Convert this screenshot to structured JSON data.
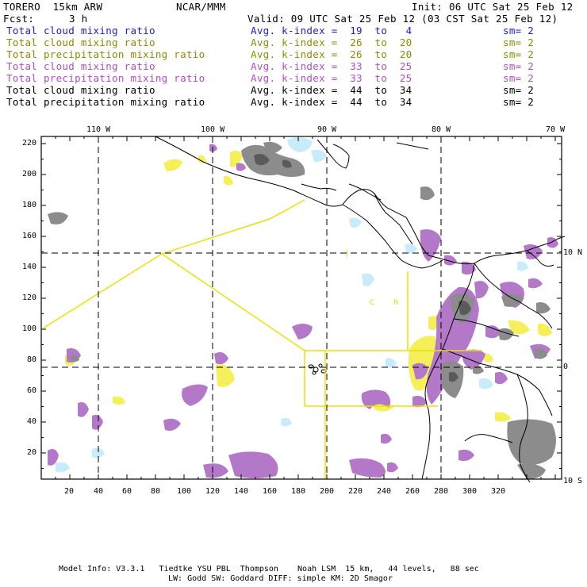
{
  "header": {
    "model": "TORERO  15km ARW",
    "org": "NCAR/MMM",
    "init": "Init: 06 UTC Sat 25 Feb 12",
    "fcst_label": "Fcst:",
    "fcst_value": "3 h",
    "valid": "Valid: 09 UTC Sat 25 Feb 12 (03 CST Sat 25 Feb 12)"
  },
  "legend": [
    {
      "field": "Total cloud mixing ratio",
      "index": "Avg. k-index =  19  to   4",
      "sm": "sm= 2",
      "color": "#1a1ae6"
    },
    {
      "field": "Total cloud mixing ratio",
      "index": "Avg. k-index =  26  to  20",
      "sm": "sm= 2",
      "color": "#8c8c00"
    },
    {
      "field": "Total precipitation mixing ratio",
      "index": "Avg. k-index =  26  to  20",
      "sm": "sm= 2",
      "color": "#8c8c00"
    },
    {
      "field": "Total cloud mixing ratio",
      "index": "Avg. k-index =  33  to  25",
      "sm": "sm= 2",
      "color": "#b44cc8"
    },
    {
      "field": "Total precipitation mixing ratio",
      "index": "Avg. k-index =  33  to  25",
      "sm": "sm= 2",
      "color": "#b44cc8"
    },
    {
      "field": "Total cloud mixing ratio",
      "index": "Avg. k-index =  44  to  34",
      "sm": "sm= 2",
      "color": "#000000"
    },
    {
      "field": "Total precipitation mixing ratio",
      "index": "Avg. k-index =  44  to  34",
      "sm": "sm= 2",
      "color": "#000000"
    }
  ],
  "axes": {
    "lon_labels": [
      "110 W",
      "100 W",
      "90 W",
      "80 W",
      "70 W"
    ],
    "lat_labels": [
      "10 N",
      "0",
      "10 S"
    ],
    "y_ticks": [
      "220",
      "200",
      "180",
      "160",
      "140",
      "120",
      "100",
      "80",
      "60",
      "40",
      "20"
    ],
    "x_ticks": [
      "20",
      "40",
      "60",
      "80",
      "100",
      "120",
      "140",
      "160",
      "180",
      "200",
      "220",
      "240",
      "260",
      "280",
      "300",
      "320"
    ]
  },
  "map_labels": {
    "country_c": "C",
    "country_r": "R"
  },
  "footer": {
    "line1": "Model Info: V3.3.1   Tiedtke YSU PBL  Thompson    Noah LSM  15 km,   44 levels,   88 sec",
    "line2": "LW: Godd SW: Goddard DIFF: simple KM: 2D Smagor"
  },
  "colors": {
    "cloud_light": "#c8ecfa",
    "cloud_yellow": "#f5f05a",
    "precip_purple": "#b478c8",
    "cloud_gray": "#8c8c8c",
    "box_yellow": "#f0e000"
  }
}
